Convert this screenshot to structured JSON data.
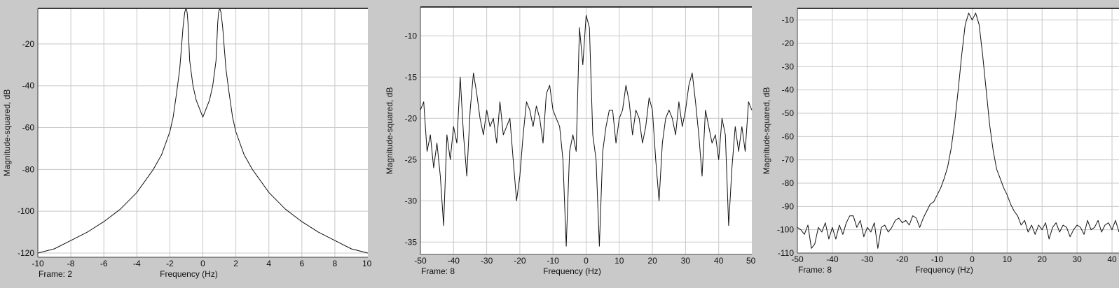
{
  "colors": {
    "background": "#c9c9c9",
    "plot_area": "#ffffff",
    "grid": "#c8c8c8",
    "line": "#111111"
  },
  "chart_data": [
    {
      "type": "line",
      "frame_label": "Frame: 2",
      "xlabel": "Frequency (Hz)",
      "ylabel": "Magnitude-squared, dB",
      "xlim": [
        -10,
        10
      ],
      "ylim": [
        -122,
        -3
      ],
      "xticks": [
        -10,
        -8,
        -6,
        -4,
        -2,
        0,
        2,
        4,
        6,
        8,
        10
      ],
      "yticks": [
        -20,
        -40,
        -60,
        -80,
        -100,
        -120
      ],
      "grid": true,
      "series": [
        {
          "x": [
            -10,
            -9,
            -8,
            -7,
            -6,
            -5,
            -4,
            -3,
            -2.5,
            -2,
            -1.8,
            -1.6,
            -1.4,
            -1.3,
            -1.2,
            -1.1,
            -1.05,
            -1.0,
            -0.95,
            -0.9,
            -0.8,
            -0.6,
            -0.4,
            -0.2,
            0,
            0.2,
            0.4,
            0.6,
            0.8,
            0.9,
            0.95,
            1.0,
            1.05,
            1.1,
            1.2,
            1.3,
            1.4,
            1.6,
            1.8,
            2,
            2.5,
            3,
            4,
            5,
            6,
            7,
            8,
            9,
            10
          ],
          "y": [
            -120,
            -118,
            -114,
            -110,
            -105,
            -99,
            -91,
            -80,
            -73,
            -62,
            -55,
            -44,
            -32,
            -22,
            -12,
            -5,
            -3.5,
            -3.5,
            -5,
            -10,
            -28,
            -40,
            -47,
            -51,
            -55,
            -51,
            -47,
            -40,
            -28,
            -10,
            -5,
            -3.5,
            -3.5,
            -5,
            -12,
            -22,
            -32,
            -44,
            -55,
            -62,
            -73,
            -80,
            -91,
            -99,
            -105,
            -110,
            -114,
            -118,
            -120
          ]
        }
      ]
    },
    {
      "type": "line",
      "frame_label": "Frame: 8",
      "xlabel": "Frequency (Hz)",
      "ylabel": "Magnitude-squared, dB",
      "xlim": [
        -50,
        50
      ],
      "ylim": [
        -36.5,
        -6.5
      ],
      "xticks": [
        -50,
        -40,
        -30,
        -20,
        -10,
        0,
        10,
        20,
        30,
        40,
        50
      ],
      "yticks": [
        -10,
        -15,
        -20,
        -25,
        -30,
        -35
      ],
      "grid": true,
      "series": [
        {
          "x": [
            -50,
            -49,
            -48,
            -47,
            -46,
            -45,
            -44,
            -43,
            -42,
            -41,
            -40,
            -39,
            -38,
            -37,
            -36,
            -35,
            -34,
            -33,
            -32,
            -31,
            -30,
            -29,
            -28,
            -27,
            -26,
            -25,
            -24,
            -23,
            -22,
            -21,
            -20,
            -19,
            -18,
            -17,
            -16,
            -15,
            -14,
            -13,
            -12,
            -11,
            -10,
            -9,
            -8,
            -7,
            -6,
            -5,
            -4,
            -3,
            -2,
            -1,
            0,
            1,
            2,
            3,
            4,
            5,
            6,
            7,
            8,
            9,
            10,
            11,
            12,
            13,
            14,
            15,
            16,
            17,
            18,
            19,
            20,
            21,
            22,
            23,
            24,
            25,
            26,
            27,
            28,
            29,
            30,
            31,
            32,
            33,
            34,
            35,
            36,
            37,
            38,
            39,
            40,
            41,
            42,
            43,
            44,
            45,
            46,
            47,
            48,
            49,
            50
          ],
          "y": [
            -19,
            -18,
            -24,
            -22,
            -26,
            -23,
            -27,
            -33,
            -22,
            -25,
            -21,
            -23,
            -15,
            -22,
            -27,
            -19,
            -14.5,
            -17,
            -20,
            -22,
            -19,
            -21,
            -20,
            -23,
            -18,
            -22,
            -21,
            -20,
            -25,
            -30,
            -27,
            -22,
            -18,
            -19,
            -21,
            -18.5,
            -20,
            -23,
            -17,
            -16,
            -19,
            -20,
            -21,
            -25,
            -35.5,
            -24,
            -22,
            -24,
            -9,
            -13.5,
            -7.5,
            -9,
            -22,
            -25,
            -35.5,
            -24,
            -21,
            -19,
            -19,
            -23,
            -20,
            -19,
            -16,
            -18,
            -22,
            -19,
            -20,
            -23,
            -21,
            -17.5,
            -19,
            -25,
            -30,
            -23,
            -20,
            -19,
            -20,
            -22,
            -18,
            -21,
            -19,
            -16,
            -14.5,
            -18,
            -22,
            -27,
            -19,
            -21,
            -23,
            -22,
            -25,
            -20,
            -22,
            -33,
            -26,
            -21,
            -24,
            -21,
            -24,
            -18,
            -19
          ]
        }
      ]
    },
    {
      "type": "line",
      "frame_label": "Frame: 8",
      "xlabel": "Frequency (Hz)",
      "ylabel": "Magnitude-squared, dB",
      "xlim": [
        -50,
        42
      ],
      "ylim": [
        -110,
        -5
      ],
      "xticks": [
        -50,
        -40,
        -30,
        -20,
        -10,
        0,
        10,
        20,
        30,
        40
      ],
      "yticks": [
        -10,
        -20,
        -30,
        -40,
        -50,
        -60,
        -70,
        -80,
        -90,
        -100,
        -110
      ],
      "grid": true,
      "series": [
        {
          "x": [
            -50,
            -49,
            -48,
            -47,
            -46,
            -45,
            -44,
            -43,
            -42,
            -41,
            -40,
            -39,
            -38,
            -37,
            -36,
            -35,
            -34,
            -33,
            -32,
            -31,
            -30,
            -29,
            -28,
            -27,
            -26,
            -25,
            -24,
            -23,
            -22,
            -21,
            -20,
            -19,
            -18,
            -17,
            -16,
            -15,
            -14,
            -13,
            -12,
            -11,
            -10,
            -9,
            -8,
            -7,
            -6,
            -5,
            -4,
            -3,
            -2,
            -1,
            0,
            1,
            2,
            3,
            4,
            5,
            6,
            7,
            8,
            9,
            10,
            11,
            12,
            13,
            14,
            15,
            16,
            17,
            18,
            19,
            20,
            21,
            22,
            23,
            24,
            25,
            26,
            27,
            28,
            29,
            30,
            31,
            32,
            33,
            34,
            35,
            36,
            37,
            38,
            39,
            40,
            41,
            42
          ],
          "y": [
            -99,
            -100,
            -102,
            -98,
            -108,
            -106,
            -99,
            -101,
            -97,
            -104,
            -99,
            -104,
            -98,
            -102,
            -97,
            -94,
            -94,
            -99,
            -96,
            -103,
            -99,
            -101,
            -97,
            -108,
            -99,
            -98,
            -101,
            -99,
            -96,
            -95,
            -97,
            -96,
            -98,
            -94,
            -95,
            -99,
            -95,
            -92,
            -89,
            -88,
            -85,
            -82,
            -78,
            -73,
            -65,
            -54,
            -40,
            -25,
            -12,
            -7,
            -10,
            -7,
            -12,
            -25,
            -40,
            -55,
            -66,
            -74,
            -78,
            -82,
            -85,
            -89,
            -92,
            -94,
            -98,
            -96,
            -101,
            -98,
            -102,
            -98,
            -100,
            -97,
            -104,
            -99,
            -97,
            -101,
            -98,
            -99,
            -103,
            -100,
            -98,
            -99,
            -102,
            -96,
            -100,
            -99,
            -96,
            -101,
            -98,
            -97,
            -100,
            -96,
            -101
          ]
        }
      ]
    }
  ]
}
